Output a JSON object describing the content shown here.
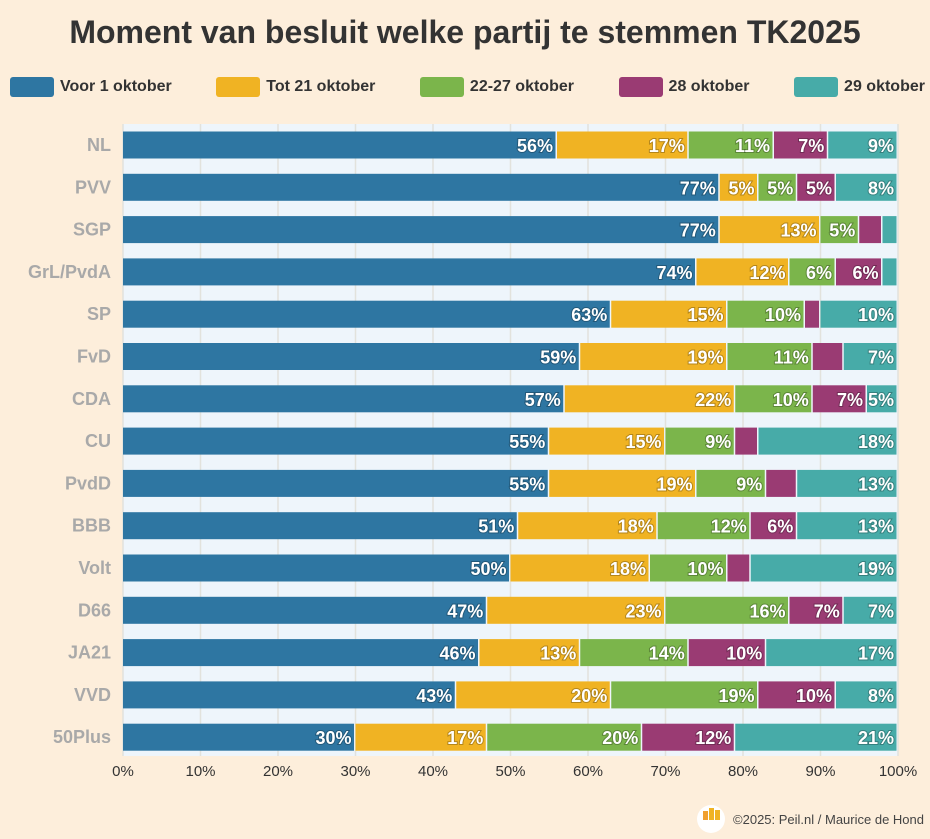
{
  "chart_data": {
    "type": "bar",
    "orientation": "horizontal",
    "stacked": true,
    "title": "Moment van besluit welke partij te stemmen TK2025",
    "categories": [
      "NL",
      "PVV",
      "SGP",
      "GrL/PvdA",
      "SP",
      "FvD",
      "CDA",
      "CU",
      "PvdD",
      "BBB",
      "Volt",
      "D66",
      "JA21",
      "VVD",
      "50Plus"
    ],
    "series": [
      {
        "name": "Voor 1 oktober",
        "color": "#2e76a2",
        "values": [
          56,
          77,
          77,
          74,
          63,
          59,
          57,
          55,
          55,
          51,
          50,
          47,
          46,
          43,
          30
        ]
      },
      {
        "name": "Tot 21 oktober",
        "color": "#f0b323",
        "values": [
          17,
          5,
          13,
          12,
          15,
          19,
          22,
          15,
          19,
          18,
          18,
          23,
          13,
          20,
          17
        ]
      },
      {
        "name": "22-27 oktober",
        "color": "#7bb54b",
        "values": [
          11,
          5,
          5,
          6,
          10,
          11,
          10,
          9,
          9,
          12,
          10,
          16,
          14,
          19,
          20
        ]
      },
      {
        "name": "28 oktober",
        "color": "#9a3b73",
        "values": [
          7,
          5,
          3,
          6,
          2,
          4,
          7,
          3,
          4,
          6,
          3,
          7,
          10,
          10,
          12
        ]
      },
      {
        "name": "29 oktober",
        "color": "#47aba8",
        "values": [
          9,
          8,
          2,
          2,
          10,
          7,
          5,
          18,
          13,
          13,
          19,
          7,
          17,
          8,
          21
        ]
      }
    ],
    "xlim": [
      0,
      100
    ],
    "xticks": [
      "0%",
      "10%",
      "20%",
      "30%",
      "40%",
      "50%",
      "60%",
      "70%",
      "80%",
      "90%",
      "100%"
    ],
    "label_min": 5,
    "legend_position": "top",
    "grid": true
  },
  "footer": {
    "credit": "©2025: Peil.nl / Maurice de Hond",
    "logo_text": "Peil.nl"
  }
}
